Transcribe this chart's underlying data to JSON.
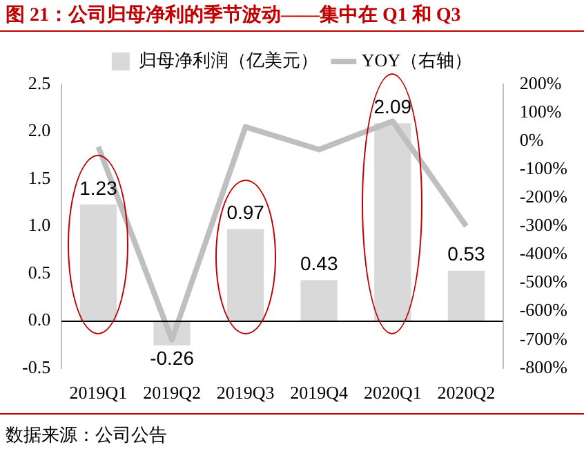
{
  "chart_data": {
    "type": "bar",
    "title": "图 21：公司归母净利的季节波动——集中在 Q1 和 Q3",
    "categories": [
      "2019Q1",
      "2019Q2",
      "2019Q3",
      "2019Q4",
      "2020Q1",
      "2020Q2"
    ],
    "series": [
      {
        "name": "归母净利润（亿美元）",
        "color": "#d9d9d9",
        "values": [
          1.23,
          -0.26,
          0.97,
          0.43,
          2.09,
          0.53
        ],
        "value_labels": [
          "1.23",
          "-0.26",
          "0.97",
          "0.43",
          "2.09",
          "0.53"
        ]
      },
      {
        "name": "YOY（右轴）",
        "type": "line",
        "axis": "y2",
        "color": "#bfbfbf",
        "values": [
          -20,
          -700,
          50,
          -30,
          70,
          -300
        ]
      }
    ],
    "ylim": [
      -0.5,
      2.5
    ],
    "yticks": [
      -0.5,
      {
        "value": 0,
        "label": "0.0"
      },
      0.5,
      {
        "value": 1,
        "label": "1.0"
      },
      1.5,
      {
        "value": 2,
        "label": "2.0"
      },
      2.5
    ],
    "y2lim": [
      -800,
      200
    ],
    "y2ticks": [
      {
        "value": -800,
        "label": "-800%"
      },
      {
        "value": -700,
        "label": "-700%"
      },
      {
        "value": -600,
        "label": "-600%"
      },
      {
        "value": -500,
        "label": "-500%"
      },
      {
        "value": -400,
        "label": "-400%"
      },
      {
        "value": -300,
        "label": "-300%"
      },
      {
        "value": -200,
        "label": "-200%"
      },
      {
        "value": -100,
        "label": "-100%"
      },
      {
        "value": 0,
        "label": "0%"
      },
      {
        "value": 100,
        "label": "100%"
      },
      {
        "value": 200,
        "label": "200%"
      }
    ],
    "legend": "top",
    "grid": false,
    "marker": "none",
    "ref_lines": [
      {
        "axis": "y",
        "value": 0,
        "color": "#000000"
      }
    ],
    "annotations": [
      "数据来源：公司公告"
    ]
  }
}
